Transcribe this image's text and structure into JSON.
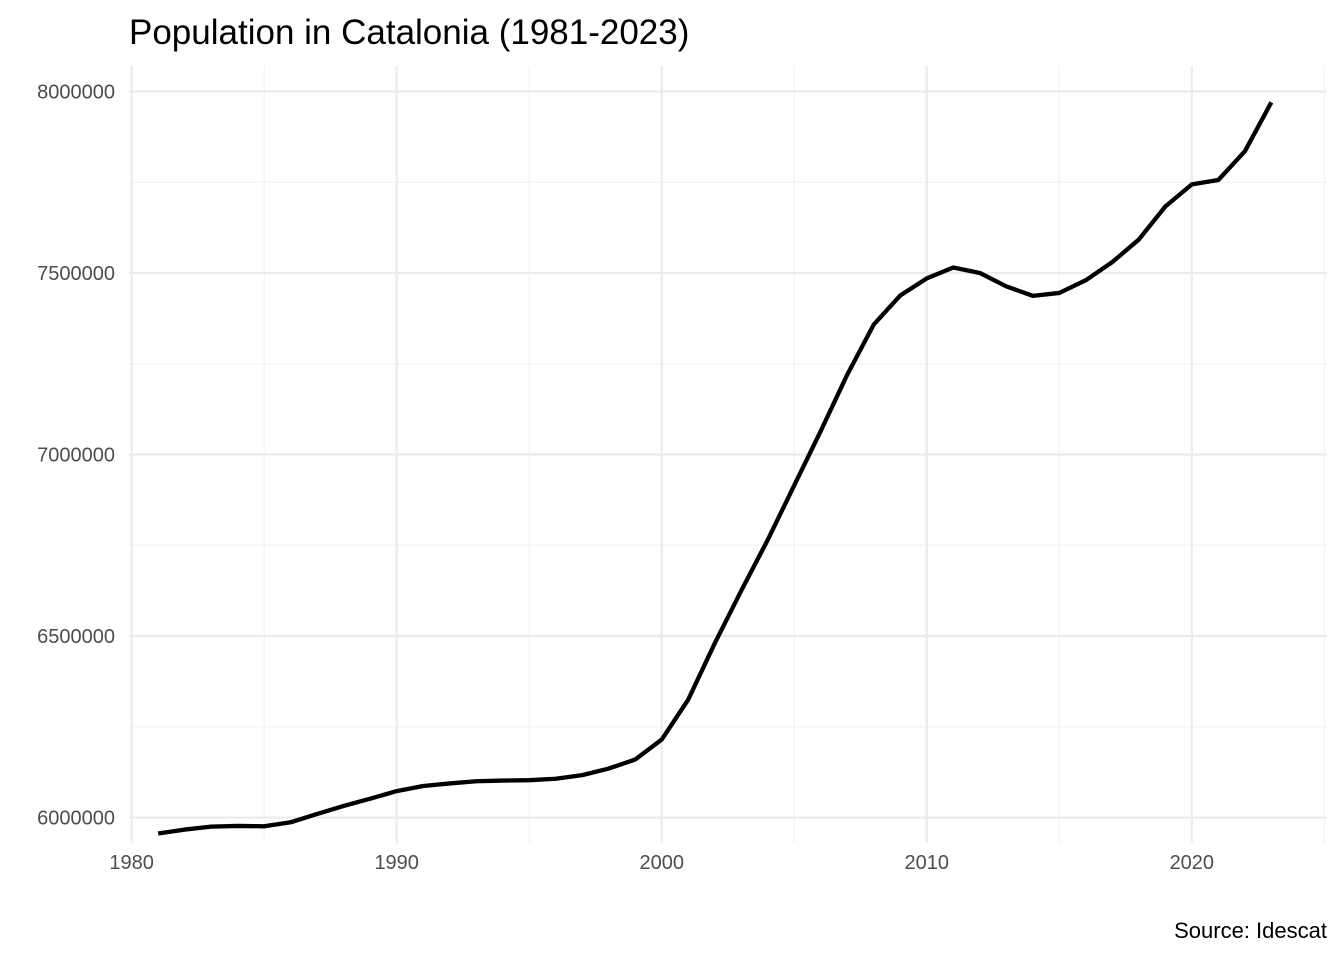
{
  "chart_data": {
    "type": "line",
    "title": "Population in Catalonia (1981-2023)",
    "caption": "Source: Idescat",
    "xlabel": "",
    "ylabel": "",
    "xlim": [
      1979.9,
      2025.1
    ],
    "ylim": [
      5930000,
      8070000
    ],
    "x_ticks": [
      1980,
      1990,
      2000,
      2010,
      2020
    ],
    "x_minor_ticks": [
      1985,
      1995,
      2005,
      2015,
      2025
    ],
    "y_ticks": [
      6000000,
      6500000,
      7000000,
      7500000,
      8000000
    ],
    "y_minor_ticks": [
      6250000,
      6750000,
      7250000,
      7750000
    ],
    "grid": true,
    "legend": "none",
    "line_color": "#000000",
    "series": [
      {
        "x": [
          1981,
          1982,
          1983,
          1984,
          1985,
          1986,
          1987,
          1988,
          1989,
          1990,
          1991,
          1992,
          1993,
          1994,
          1995,
          1996,
          1997,
          1998,
          1999,
          2000,
          2001,
          2002,
          2003,
          2004,
          2005,
          2006,
          2007,
          2008,
          2009,
          2010,
          2011,
          2012,
          2013,
          2014,
          2015,
          2016,
          2017,
          2018,
          2019,
          2020,
          2021,
          2022,
          2023
        ],
        "values": [
          5956000,
          5967000,
          5975000,
          5977000,
          5976000,
          5987000,
          6010000,
          6032000,
          6052000,
          6073000,
          6087000,
          6094000,
          6100000,
          6102000,
          6103000,
          6107000,
          6117000,
          6135000,
          6160000,
          6215000,
          6325000,
          6480000,
          6625000,
          6765000,
          6915000,
          7065000,
          7220000,
          7358000,
          7438000,
          7485000,
          7515000,
          7500000,
          7463000,
          7437000,
          7445000,
          7480000,
          7530000,
          7592000,
          7683000,
          7744000,
          7756000,
          7835000,
          7970000
        ]
      }
    ]
  }
}
